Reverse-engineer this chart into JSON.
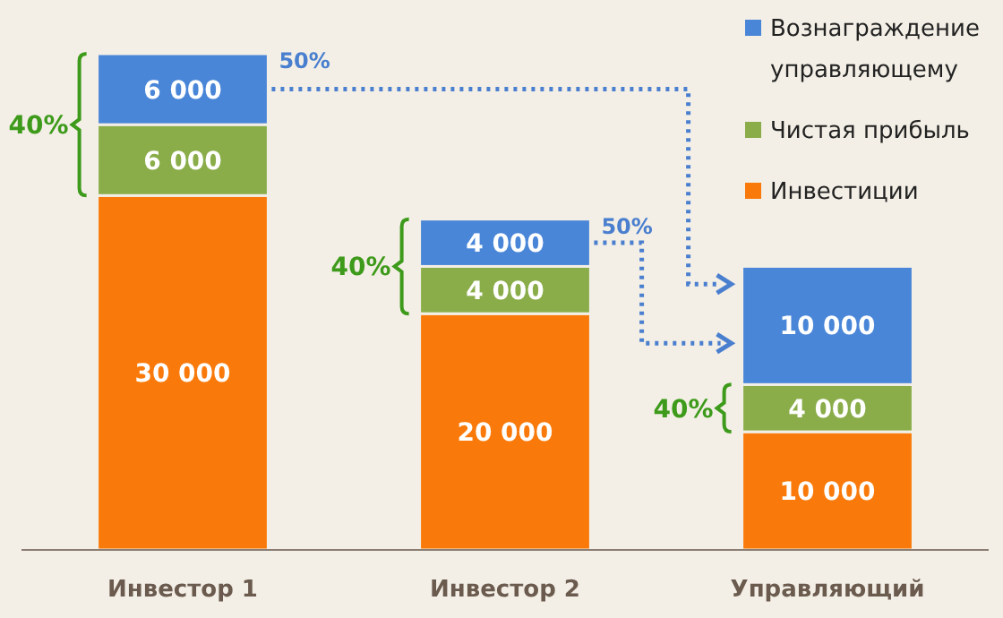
{
  "chart_data": {
    "type": "bar",
    "stacked": true,
    "data_labels": true,
    "legend": "top right",
    "categories": [
      "Инвестор 1",
      "Инвестор 2",
      "Управляющий"
    ],
    "series": [
      {
        "name": "Инвестиции",
        "color": "#f97a0a",
        "values": [
          30000,
          20000,
          10000
        ]
      },
      {
        "name": "Чистая прибыль",
        "color": "#8aad4a",
        "values": [
          6000,
          4000,
          4000
        ]
      },
      {
        "name": "Вознаграждение управляющему",
        "color": "#4a86d8",
        "values": [
          6000,
          4000,
          10000
        ]
      }
    ],
    "annotations": [
      "40%",
      "50%",
      "40%",
      "50%",
      "40%"
    ]
  }
}
